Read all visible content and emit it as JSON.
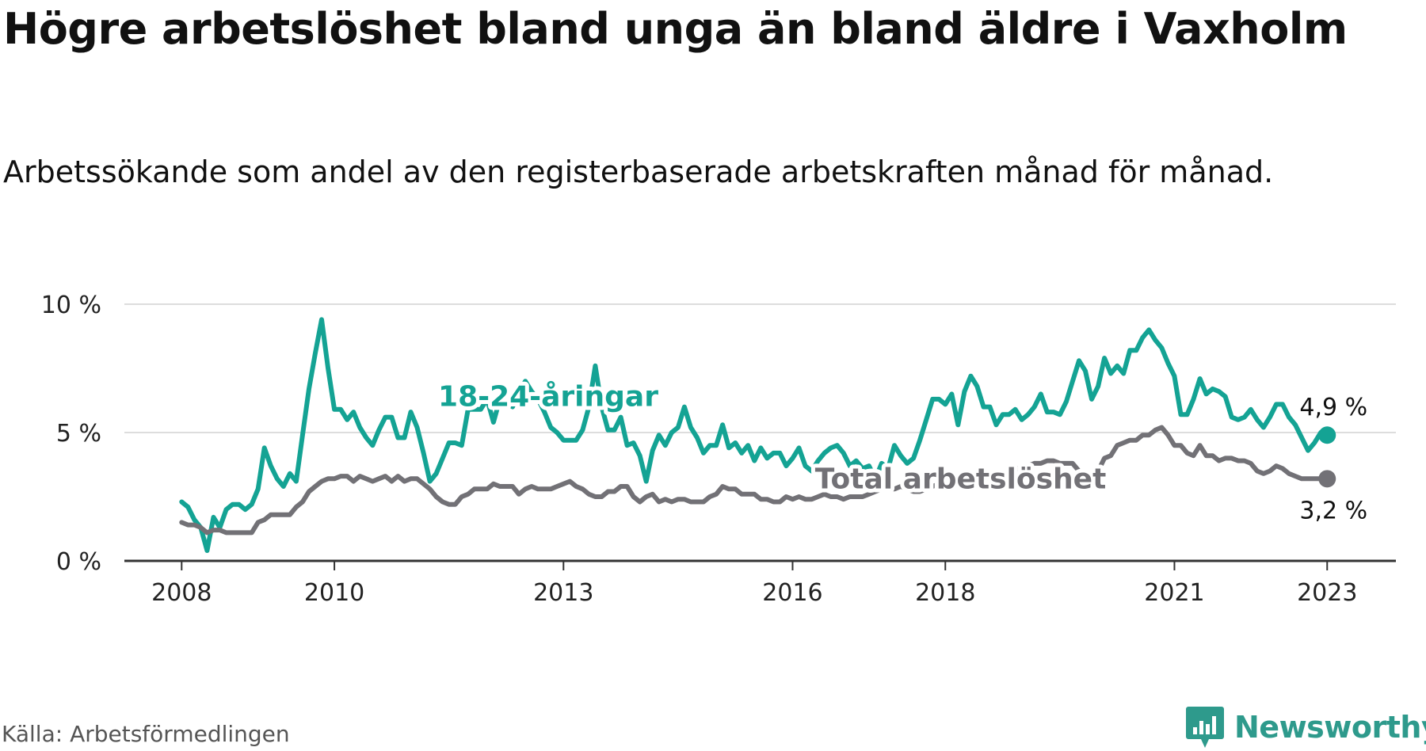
{
  "header": {
    "title": "Högre arbetslöshet bland unga än bland äldre i Vaxholm",
    "subtitle": "Arbetssökande som andel av den registerbaserade arbetskraften månad för månad."
  },
  "footer": {
    "source": "Källa: Arbetsförmedlingen",
    "logo_text": "Newsworthy"
  },
  "colors": {
    "youth": "#14a394",
    "total": "#727176",
    "grid": "#dddddd",
    "axis": "#333333",
    "logo": "#2e9a8c"
  },
  "chart_data": {
    "type": "line",
    "title": "Högre arbetslöshet bland unga än bland äldre i Vaxholm",
    "ylim": [
      0,
      10
    ],
    "xlim": [
      2007.25,
      2023.9
    ],
    "yticks": [
      {
        "value": 0,
        "label": "0 %"
      },
      {
        "value": 5,
        "label": "5 %"
      },
      {
        "value": 10,
        "label": "10 %"
      }
    ],
    "xticks": [
      {
        "value": 2008,
        "label": "2008"
      },
      {
        "value": 2010,
        "label": "2010"
      },
      {
        "value": 2013,
        "label": "2013"
      },
      {
        "value": 2016,
        "label": "2016"
      },
      {
        "value": 2018,
        "label": "2018"
      },
      {
        "value": 2021,
        "label": "2021"
      },
      {
        "value": 2023,
        "label": "2023"
      }
    ],
    "start_year": 2008,
    "step": 0.0833333,
    "series": [
      {
        "name": "18-24-åringar",
        "key": "youth",
        "end_label": "4,9 %",
        "values": [
          2.3,
          2.1,
          1.6,
          1.3,
          0.4,
          1.7,
          1.3,
          2.0,
          2.2,
          2.2,
          2.0,
          2.2,
          2.8,
          4.4,
          3.7,
          3.2,
          2.9,
          3.4,
          3.1,
          4.9,
          6.7,
          8.1,
          9.4,
          7.5,
          5.9,
          5.9,
          5.5,
          5.8,
          5.2,
          4.8,
          4.5,
          5.1,
          5.6,
          5.6,
          4.8,
          4.8,
          5.8,
          5.2,
          4.2,
          3.1,
          3.4,
          4.0,
          4.6,
          4.6,
          4.5,
          5.9,
          5.9,
          5.9,
          6.3,
          5.4,
          6.3,
          6.2,
          6.0,
          6.6,
          7.0,
          6.6,
          6.3,
          5.8,
          5.2,
          5.0,
          4.7,
          4.7,
          4.7,
          5.1,
          6.0,
          7.6,
          6.0,
          5.1,
          5.1,
          5.6,
          4.5,
          4.6,
          4.1,
          3.1,
          4.3,
          4.9,
          4.5,
          5.0,
          5.2,
          6.0,
          5.2,
          4.8,
          4.2,
          4.5,
          4.5,
          5.3,
          4.4,
          4.6,
          4.2,
          4.5,
          3.9,
          4.4,
          4.0,
          4.2,
          4.2,
          3.7,
          4.0,
          4.4,
          3.7,
          3.5,
          3.9,
          4.2,
          4.4,
          4.5,
          4.2,
          3.7,
          3.9,
          3.6,
          3.7,
          3.2,
          3.8,
          3.6,
          4.5,
          4.1,
          3.8,
          4.0,
          4.7,
          5.5,
          6.3,
          6.3,
          6.1,
          6.5,
          5.3,
          6.6,
          7.2,
          6.8,
          6.0,
          6.0,
          5.3,
          5.7,
          5.7,
          5.9,
          5.5,
          5.7,
          6.0,
          6.5,
          5.8,
          5.8,
          5.7,
          6.2,
          7.0,
          7.8,
          7.4,
          6.3,
          6.8,
          7.9,
          7.3,
          7.6,
          7.3,
          8.2,
          8.2,
          8.7,
          9.0,
          8.6,
          8.3,
          7.7,
          7.2,
          5.7,
          5.7,
          6.3,
          7.1,
          6.5,
          6.7,
          6.6,
          6.4,
          5.6,
          5.5,
          5.6,
          5.9,
          5.5,
          5.2,
          5.6,
          6.1,
          6.1,
          5.6,
          5.3,
          4.8,
          4.3,
          4.6,
          5.0,
          4.9
        ]
      },
      {
        "name": "Total arbetslöshet",
        "key": "total",
        "end_label": "3,2 %",
        "values": [
          1.5,
          1.4,
          1.4,
          1.3,
          1.1,
          1.2,
          1.2,
          1.1,
          1.1,
          1.1,
          1.1,
          1.1,
          1.5,
          1.6,
          1.8,
          1.8,
          1.8,
          1.8,
          2.1,
          2.3,
          2.7,
          2.9,
          3.1,
          3.2,
          3.2,
          3.3,
          3.3,
          3.1,
          3.3,
          3.2,
          3.1,
          3.2,
          3.3,
          3.1,
          3.3,
          3.1,
          3.2,
          3.2,
          3.0,
          2.8,
          2.5,
          2.3,
          2.2,
          2.2,
          2.5,
          2.6,
          2.8,
          2.8,
          2.8,
          3.0,
          2.9,
          2.9,
          2.9,
          2.6,
          2.8,
          2.9,
          2.8,
          2.8,
          2.8,
          2.9,
          3.0,
          3.1,
          2.9,
          2.8,
          2.6,
          2.5,
          2.5,
          2.7,
          2.7,
          2.9,
          2.9,
          2.5,
          2.3,
          2.5,
          2.6,
          2.3,
          2.4,
          2.3,
          2.4,
          2.4,
          2.3,
          2.3,
          2.3,
          2.5,
          2.6,
          2.9,
          2.8,
          2.8,
          2.6,
          2.6,
          2.6,
          2.4,
          2.4,
          2.3,
          2.3,
          2.5,
          2.4,
          2.5,
          2.4,
          2.4,
          2.5,
          2.6,
          2.5,
          2.5,
          2.4,
          2.5,
          2.5,
          2.5,
          2.6,
          2.7,
          2.8,
          2.8,
          2.8,
          2.9,
          2.8,
          2.7,
          2.7,
          2.8,
          2.9,
          3.0,
          3.0,
          3.1,
          3.1,
          3.1,
          3.0,
          3.0,
          3.2,
          3.2,
          3.2,
          3.3,
          3.3,
          3.5,
          3.7,
          3.7,
          3.8,
          3.8,
          3.9,
          3.9,
          3.8,
          3.8,
          3.8,
          3.5,
          3.4,
          3.3,
          3.5,
          4.0,
          4.1,
          4.5,
          4.6,
          4.7,
          4.7,
          4.9,
          4.9,
          5.1,
          5.2,
          4.9,
          4.5,
          4.5,
          4.2,
          4.1,
          4.5,
          4.1,
          4.1,
          3.9,
          4.0,
          4.0,
          3.9,
          3.9,
          3.8,
          3.5,
          3.4,
          3.5,
          3.7,
          3.6,
          3.4,
          3.3,
          3.2,
          3.2,
          3.2,
          3.2,
          3.2
        ]
      }
    ],
    "annotations": [
      {
        "text": "18-24-åringar",
        "series": "youth",
        "near": [
          2012.8,
          6.4
        ]
      },
      {
        "text": "Total arbetslöshet",
        "series": "total",
        "near": [
          2018.2,
          3.2
        ]
      }
    ]
  }
}
